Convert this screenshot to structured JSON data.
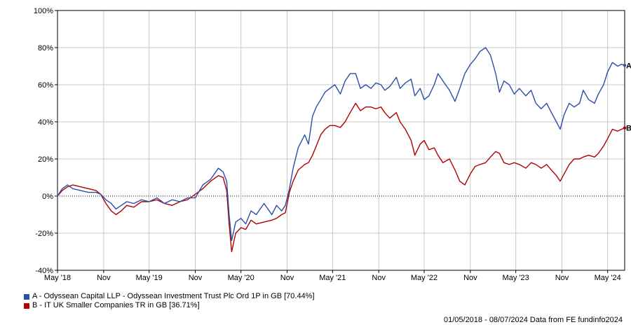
{
  "chart_data": {
    "type": "line",
    "y_ticks": [
      "100%",
      "80%",
      "60%",
      "40%",
      "20%",
      "0%",
      "-20%",
      "-40%"
    ],
    "ylim": [
      -40,
      100
    ],
    "x_ticks": [
      "May '18",
      "Nov",
      "May '19",
      "Nov",
      "May '20",
      "Nov",
      "May '21",
      "Nov",
      "May '22",
      "Nov",
      "May '23",
      "Nov",
      "May '24"
    ],
    "x_tick_dates": [
      "2018-05-01",
      "2018-11-01",
      "2019-05-01",
      "2019-11-01",
      "2020-05-01",
      "2020-11-01",
      "2021-05-01",
      "2021-11-01",
      "2022-05-01",
      "2022-11-01",
      "2023-05-01",
      "2023-11-01",
      "2024-05-01"
    ],
    "x_range": [
      "2018-05-01",
      "2024-07-08"
    ],
    "grid": true,
    "zero_line": "dotted",
    "series": [
      {
        "name": "A - Odyssean Capital LLP - Odyssean Investment Trust Plc Ord 1P in GB [70.44%]",
        "end_label": "A",
        "color": "#2b4ea8",
        "points": [
          [
            "2018-05-01",
            0
          ],
          [
            "2018-05-20",
            4
          ],
          [
            "2018-06-10",
            6
          ],
          [
            "2018-07-01",
            4
          ],
          [
            "2018-08-01",
            3
          ],
          [
            "2018-09-01",
            2
          ],
          [
            "2018-10-01",
            2
          ],
          [
            "2018-10-20",
            1
          ],
          [
            "2018-11-10",
            -2
          ],
          [
            "2018-12-01",
            -4
          ],
          [
            "2018-12-20",
            -7
          ],
          [
            "2019-01-10",
            -5
          ],
          [
            "2019-02-01",
            -3
          ],
          [
            "2019-03-01",
            -4
          ],
          [
            "2019-04-01",
            -2
          ],
          [
            "2019-05-01",
            -3
          ],
          [
            "2019-06-01",
            -1
          ],
          [
            "2019-07-01",
            -4
          ],
          [
            "2019-08-01",
            -2
          ],
          [
            "2019-09-01",
            -3
          ],
          [
            "2019-10-01",
            -1
          ],
          [
            "2019-11-01",
            -1
          ],
          [
            "2019-12-01",
            6
          ],
          [
            "2020-01-01",
            9
          ],
          [
            "2020-02-01",
            15
          ],
          [
            "2020-02-20",
            13
          ],
          [
            "2020-03-05",
            8
          ],
          [
            "2020-03-15",
            -10
          ],
          [
            "2020-03-25",
            -24
          ],
          [
            "2020-04-10",
            -14
          ],
          [
            "2020-05-01",
            -12
          ],
          [
            "2020-05-20",
            -15
          ],
          [
            "2020-06-10",
            -8
          ],
          [
            "2020-07-01",
            -10
          ],
          [
            "2020-08-01",
            -4
          ],
          [
            "2020-09-01",
            -10
          ],
          [
            "2020-09-20",
            -5
          ],
          [
            "2020-10-10",
            -8
          ],
          [
            "2020-10-25",
            -5
          ],
          [
            "2020-11-10",
            4
          ],
          [
            "2020-11-25",
            15
          ],
          [
            "2020-12-15",
            26
          ],
          [
            "2021-01-10",
            33
          ],
          [
            "2021-01-25",
            28
          ],
          [
            "2021-02-10",
            43
          ],
          [
            "2021-02-25",
            48
          ],
          [
            "2021-03-15",
            52
          ],
          [
            "2021-04-01",
            56
          ],
          [
            "2021-04-20",
            58
          ],
          [
            "2021-05-10",
            60
          ],
          [
            "2021-06-01",
            55
          ],
          [
            "2021-06-20",
            62
          ],
          [
            "2021-07-10",
            66
          ],
          [
            "2021-08-01",
            66
          ],
          [
            "2021-08-20",
            58
          ],
          [
            "2021-09-10",
            60
          ],
          [
            "2021-10-01",
            58
          ],
          [
            "2021-10-20",
            61
          ],
          [
            "2021-11-10",
            60
          ],
          [
            "2021-11-25",
            57
          ],
          [
            "2021-12-15",
            59
          ],
          [
            "2022-01-10",
            64
          ],
          [
            "2022-01-25",
            58
          ],
          [
            "2022-02-15",
            61
          ],
          [
            "2022-03-10",
            63
          ],
          [
            "2022-03-25",
            54
          ],
          [
            "2022-04-15",
            58
          ],
          [
            "2022-05-01",
            52
          ],
          [
            "2022-05-20",
            54
          ],
          [
            "2022-06-10",
            60
          ],
          [
            "2022-06-25",
            66
          ],
          [
            "2022-07-15",
            62
          ],
          [
            "2022-08-10",
            57
          ],
          [
            "2022-09-01",
            51
          ],
          [
            "2022-09-20",
            58
          ],
          [
            "2022-10-10",
            66
          ],
          [
            "2022-11-01",
            71
          ],
          [
            "2022-11-20",
            74
          ],
          [
            "2022-12-10",
            78
          ],
          [
            "2023-01-01",
            80
          ],
          [
            "2023-01-20",
            76
          ],
          [
            "2023-02-10",
            66
          ],
          [
            "2023-02-25",
            56
          ],
          [
            "2023-03-15",
            62
          ],
          [
            "2023-04-05",
            60
          ],
          [
            "2023-04-25",
            55
          ],
          [
            "2023-05-15",
            58
          ],
          [
            "2023-06-10",
            54
          ],
          [
            "2023-07-01",
            57
          ],
          [
            "2023-07-20",
            50
          ],
          [
            "2023-08-10",
            47
          ],
          [
            "2023-09-01",
            50
          ],
          [
            "2023-09-20",
            45
          ],
          [
            "2023-10-10",
            40
          ],
          [
            "2023-10-25",
            36
          ],
          [
            "2023-11-10",
            44
          ],
          [
            "2023-11-30",
            50
          ],
          [
            "2023-12-20",
            48
          ],
          [
            "2024-01-10",
            50
          ],
          [
            "2024-01-25",
            57
          ],
          [
            "2024-02-15",
            52
          ],
          [
            "2024-03-10",
            50
          ],
          [
            "2024-03-25",
            55
          ],
          [
            "2024-04-15",
            60
          ],
          [
            "2024-05-01",
            67
          ],
          [
            "2024-05-20",
            72
          ],
          [
            "2024-06-10",
            70
          ],
          [
            "2024-06-25",
            71
          ],
          [
            "2024-07-08",
            70.44
          ]
        ]
      },
      {
        "name": "B - IT UK Smaller Companies TR in GB [36.71%]",
        "end_label": "B",
        "color": "#b00000",
        "points": [
          [
            "2018-05-01",
            0
          ],
          [
            "2018-05-20",
            3
          ],
          [
            "2018-06-10",
            5
          ],
          [
            "2018-07-01",
            6
          ],
          [
            "2018-08-01",
            5
          ],
          [
            "2018-09-01",
            4
          ],
          [
            "2018-10-01",
            3
          ],
          [
            "2018-10-20",
            1
          ],
          [
            "2018-11-10",
            -4
          ],
          [
            "2018-12-01",
            -8
          ],
          [
            "2018-12-20",
            -10
          ],
          [
            "2019-01-10",
            -8
          ],
          [
            "2019-02-01",
            -5
          ],
          [
            "2019-03-01",
            -6
          ],
          [
            "2019-04-01",
            -3
          ],
          [
            "2019-05-01",
            -3
          ],
          [
            "2019-06-01",
            -2
          ],
          [
            "2019-07-01",
            -4
          ],
          [
            "2019-08-01",
            -5
          ],
          [
            "2019-09-01",
            -3
          ],
          [
            "2019-10-01",
            -2
          ],
          [
            "2019-11-01",
            1
          ],
          [
            "2019-12-01",
            4
          ],
          [
            "2020-01-01",
            8
          ],
          [
            "2020-02-01",
            11
          ],
          [
            "2020-02-20",
            10
          ],
          [
            "2020-03-05",
            3
          ],
          [
            "2020-03-15",
            -15
          ],
          [
            "2020-03-25",
            -30
          ],
          [
            "2020-04-10",
            -20
          ],
          [
            "2020-05-01",
            -17
          ],
          [
            "2020-05-20",
            -18
          ],
          [
            "2020-06-10",
            -13
          ],
          [
            "2020-07-01",
            -15
          ],
          [
            "2020-08-01",
            -14
          ],
          [
            "2020-09-01",
            -13
          ],
          [
            "2020-09-20",
            -12
          ],
          [
            "2020-10-10",
            -10
          ],
          [
            "2020-10-25",
            -9
          ],
          [
            "2020-11-10",
            2
          ],
          [
            "2020-11-25",
            8
          ],
          [
            "2020-12-15",
            14
          ],
          [
            "2021-01-10",
            17
          ],
          [
            "2021-01-25",
            18
          ],
          [
            "2021-02-10",
            22
          ],
          [
            "2021-02-25",
            27
          ],
          [
            "2021-03-15",
            33
          ],
          [
            "2021-04-01",
            36
          ],
          [
            "2021-04-20",
            38
          ],
          [
            "2021-05-10",
            38
          ],
          [
            "2021-06-01",
            37
          ],
          [
            "2021-06-20",
            40
          ],
          [
            "2021-07-10",
            45
          ],
          [
            "2021-08-01",
            50
          ],
          [
            "2021-08-20",
            46
          ],
          [
            "2021-09-10",
            48
          ],
          [
            "2021-10-01",
            48
          ],
          [
            "2021-10-20",
            47
          ],
          [
            "2021-11-10",
            48
          ],
          [
            "2021-11-25",
            45
          ],
          [
            "2021-12-15",
            42
          ],
          [
            "2022-01-10",
            45
          ],
          [
            "2022-01-25",
            40
          ],
          [
            "2022-02-15",
            36
          ],
          [
            "2022-03-10",
            30
          ],
          [
            "2022-03-25",
            22
          ],
          [
            "2022-04-15",
            28
          ],
          [
            "2022-05-01",
            30
          ],
          [
            "2022-05-20",
            25
          ],
          [
            "2022-06-10",
            26
          ],
          [
            "2022-06-25",
            22
          ],
          [
            "2022-07-15",
            18
          ],
          [
            "2022-08-10",
            20
          ],
          [
            "2022-09-01",
            14
          ],
          [
            "2022-09-20",
            8
          ],
          [
            "2022-10-10",
            6
          ],
          [
            "2022-11-01",
            12
          ],
          [
            "2022-11-20",
            16
          ],
          [
            "2022-12-10",
            17
          ],
          [
            "2023-01-01",
            18
          ],
          [
            "2023-01-20",
            21
          ],
          [
            "2023-02-10",
            24
          ],
          [
            "2023-02-25",
            23
          ],
          [
            "2023-03-15",
            18
          ],
          [
            "2023-04-05",
            17
          ],
          [
            "2023-04-25",
            18
          ],
          [
            "2023-05-15",
            17
          ],
          [
            "2023-06-10",
            15
          ],
          [
            "2023-07-01",
            18
          ],
          [
            "2023-07-20",
            17
          ],
          [
            "2023-08-10",
            15
          ],
          [
            "2023-09-01",
            17
          ],
          [
            "2023-09-20",
            14
          ],
          [
            "2023-10-10",
            11
          ],
          [
            "2023-10-25",
            8
          ],
          [
            "2023-11-10",
            12
          ],
          [
            "2023-11-30",
            17
          ],
          [
            "2023-12-20",
            20
          ],
          [
            "2024-01-10",
            20
          ],
          [
            "2024-01-25",
            21
          ],
          [
            "2024-02-15",
            22
          ],
          [
            "2024-03-10",
            21
          ],
          [
            "2024-03-25",
            23
          ],
          [
            "2024-04-15",
            27
          ],
          [
            "2024-05-01",
            31
          ],
          [
            "2024-05-20",
            36
          ],
          [
            "2024-06-10",
            35
          ],
          [
            "2024-06-25",
            36
          ],
          [
            "2024-07-08",
            36.71
          ]
        ]
      }
    ]
  },
  "legend": [
    {
      "label": "A - Odyssean Capital LLP - Odyssean Investment Trust Plc Ord 1P in GB [70.44%]",
      "color": "#2b4ea8"
    },
    {
      "label": "B - IT UK Smaller Companies TR in GB [36.71%]",
      "color": "#b00000"
    }
  ],
  "footer": "01/05/2018 - 08/07/2024 Data from FE fundinfo2024"
}
